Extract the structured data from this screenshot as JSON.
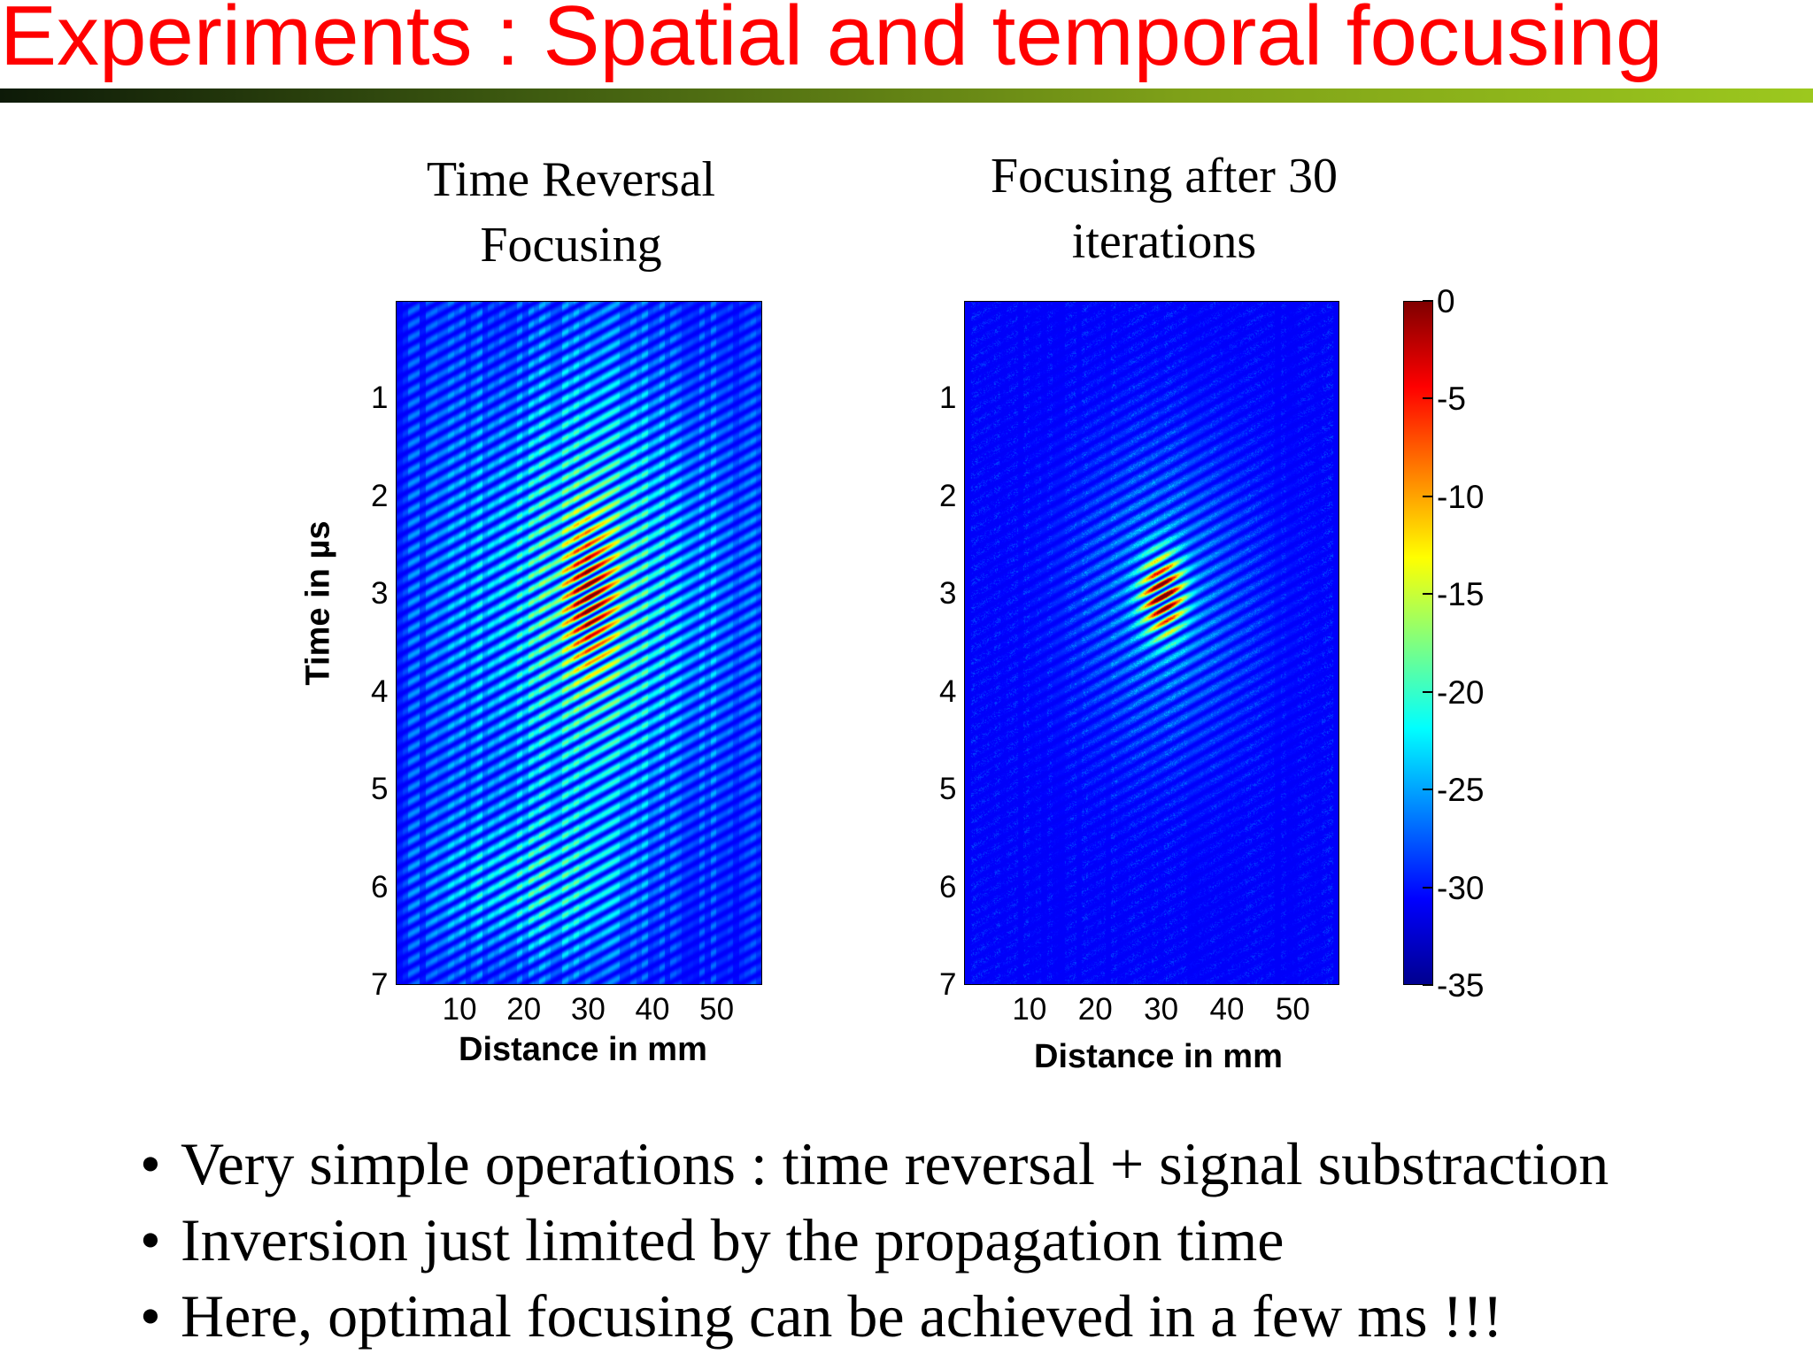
{
  "slide": {
    "title": "Experiments : Spatial and temporal focusing",
    "bullets": [
      "Very simple operations : time reversal + signal substraction",
      "Inversion just limited by the propagation time",
      "Here, optimal focusing can be achieved in a few ms !!!"
    ],
    "bullet_symbol": "•"
  },
  "colors": {
    "title": "#ff0000"
  },
  "chart_data": [
    {
      "type": "heatmap",
      "title": "Time Reversal Focusing",
      "title_lines": [
        "Time Reversal",
        "Focusing"
      ],
      "xlabel": "Distance in mm",
      "ylabel": "Time in µs",
      "x_ticks": [
        10,
        20,
        30,
        40,
        50
      ],
      "y_ticks": [
        1,
        2,
        3,
        4,
        5,
        6,
        7
      ],
      "xlim": [
        0,
        57
      ],
      "ylim": [
        7,
        0
      ],
      "colormap": "jet",
      "clim": [
        -35,
        0
      ],
      "focus": {
        "x": 30,
        "y": 3.0,
        "peak_db": 0
      },
      "description_level": "broad diffuse field with secondary lobes"
    },
    {
      "type": "heatmap",
      "title": "Focusing after 30 iterations",
      "title_lines": [
        "Focusing after 30",
        "iterations"
      ],
      "xlabel": "Distance in mm",
      "ylabel": "",
      "x_ticks": [
        10,
        20,
        30,
        40,
        50
      ],
      "y_ticks": [
        1,
        2,
        3,
        4,
        5,
        6,
        7
      ],
      "xlim": [
        0,
        57
      ],
      "ylim": [
        7,
        0
      ],
      "colormap": "jet",
      "clim": [
        -35,
        0
      ],
      "focus": {
        "x": 30,
        "y": 3.0,
        "peak_db": 0
      },
      "description_level": "compact focal spot, low background"
    }
  ],
  "colorbar": {
    "ticks": [
      0,
      -5,
      -10,
      -15,
      -20,
      -25,
      -30,
      -35
    ],
    "min": -35,
    "max": 0
  }
}
